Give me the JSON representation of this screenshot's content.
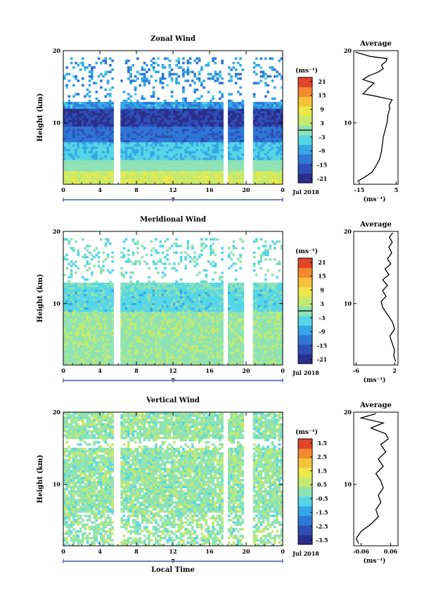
{
  "figure": {
    "xlabel": "Local Time",
    "ylabel": "Height (km)",
    "date_label": "Jul 2018",
    "day_label": "7",
    "avg_title": "Average",
    "unit_label": "(ms⁻¹)"
  },
  "chart_data": [
    {
      "type": "heatmap",
      "title": "Zonal Wind",
      "x_ticks": [
        "0",
        "4",
        "8",
        "12",
        "16",
        "20",
        "0"
      ],
      "xlim": [
        0,
        24
      ],
      "y_ticks": [
        "20",
        "10"
      ],
      "ylim": [
        1.5,
        20
      ],
      "colorbar": {
        "ticks": [
          "21",
          "15",
          "9",
          "3",
          "-3",
          "-9",
          "-15",
          "-21"
        ],
        "range": [
          -24,
          24
        ],
        "zero_line": 0
      },
      "gaps_hours": [
        [
          2.9,
          3.1
        ],
        [
          5.6,
          6.3
        ],
        [
          17.6,
          18.0
        ],
        [
          19.8,
          20.7
        ]
      ],
      "profile": {
        "points": [
          [
            -16,
            1.9
          ],
          [
            -12,
            2.5
          ],
          [
            -8,
            3.2
          ],
          [
            -6,
            4
          ],
          [
            -4,
            5
          ],
          [
            -3,
            6
          ],
          [
            -2.5,
            7
          ],
          [
            -2,
            8
          ],
          [
            -1,
            9
          ],
          [
            0,
            10
          ],
          [
            0.5,
            11
          ],
          [
            1.5,
            12
          ],
          [
            1.2,
            12.5
          ],
          [
            2.8,
            13.2
          ],
          [
            -8,
            13.8
          ],
          [
            -13,
            14
          ],
          [
            -10,
            14.8
          ],
          [
            -7,
            15.5
          ],
          [
            -13,
            16
          ],
          [
            -10,
            16.5
          ],
          [
            -5,
            17
          ],
          [
            -2,
            17.5
          ],
          [
            -3,
            18
          ],
          [
            -0.5,
            18.5
          ],
          [
            0,
            18.9
          ],
          [
            -9,
            19.2
          ],
          [
            -13,
            19.5
          ],
          [
            -17,
            19.8
          ]
        ],
        "x_ticks": [
          "-15",
          "5"
        ],
        "xlim": [
          -18,
          6
        ],
        "y_ticks": [
          "20",
          "10"
        ]
      }
    },
    {
      "type": "heatmap",
      "title": "Meridional Wind",
      "x_ticks": [
        "0",
        "4",
        "8",
        "12",
        "16",
        "20",
        "0"
      ],
      "xlim": [
        0,
        24
      ],
      "y_ticks": [
        "20",
        "10"
      ],
      "ylim": [
        1.5,
        20
      ],
      "colorbar": {
        "ticks": [
          "21",
          "15",
          "9",
          "3",
          "-3",
          "-9",
          "-15",
          "-21"
        ],
        "range": [
          -24,
          24
        ],
        "zero_line": 0
      },
      "gaps_hours": [
        [
          2.9,
          3.1
        ],
        [
          5.6,
          6.3
        ],
        [
          17.6,
          18.0
        ],
        [
          19.8,
          20.7
        ]
      ],
      "profile": {
        "points": [
          [
            2.2,
            2
          ],
          [
            1.8,
            2.8
          ],
          [
            2,
            3.5
          ],
          [
            1.5,
            4.5
          ],
          [
            1,
            5.5
          ],
          [
            2,
            6.5
          ],
          [
            1.5,
            7.5
          ],
          [
            0.5,
            8.5
          ],
          [
            -0.5,
            9.5
          ],
          [
            -0.8,
            10.3
          ],
          [
            0.2,
            11
          ],
          [
            -0.5,
            11.8
          ],
          [
            0.5,
            12.5
          ],
          [
            -0.5,
            13.3
          ],
          [
            0.8,
            14
          ],
          [
            0,
            14.8
          ],
          [
            1.2,
            15.5
          ],
          [
            0.5,
            16.2
          ],
          [
            1.4,
            17
          ],
          [
            0.8,
            17.8
          ],
          [
            1.5,
            18.5
          ],
          [
            0.9,
            19.2
          ],
          [
            1.6,
            19.8
          ]
        ],
        "x_ticks": [
          "-6",
          "2"
        ],
        "xlim": [
          -6.5,
          2.7
        ],
        "y_ticks": [
          "20",
          "10"
        ]
      }
    },
    {
      "type": "heatmap",
      "title": "Vertical Wind",
      "x_ticks": [
        "0",
        "4",
        "8",
        "12",
        "16",
        "20",
        "0"
      ],
      "xlim": [
        0,
        24
      ],
      "y_ticks": [
        "20",
        "10"
      ],
      "ylim": [
        1.5,
        20
      ],
      "colorbar": {
        "ticks": [
          "3.5",
          "2.5",
          "1.5",
          "0.5",
          "-0.5",
          "-1.5",
          "-2.5",
          "-3.5"
        ],
        "range": [
          -4,
          4
        ],
        "zero_line": null
      },
      "gaps_hours": [
        [
          2.9,
          3.1
        ],
        [
          5.6,
          6.3
        ],
        [
          17.6,
          18.0
        ],
        [
          19.8,
          20.7
        ]
      ],
      "profile": {
        "points": [
          [
            -0.07,
            1.8
          ],
          [
            -0.08,
            2.5
          ],
          [
            -0.06,
            3.5
          ],
          [
            -0.02,
            4.5
          ],
          [
            0.01,
            5.5
          ],
          [
            0,
            6.5
          ],
          [
            0.02,
            7.5
          ],
          [
            0.01,
            8.5
          ],
          [
            0.03,
            9.5
          ],
          [
            0.02,
            10.5
          ],
          [
            0,
            11.5
          ],
          [
            0.03,
            12.5
          ],
          [
            0.01,
            13.5
          ],
          [
            0.04,
            14.5
          ],
          [
            0.02,
            15.5
          ],
          [
            0.05,
            16.3
          ],
          [
            0.04,
            17
          ],
          [
            -0.02,
            17.8
          ],
          [
            0.03,
            18.5
          ],
          [
            -0.06,
            19.2
          ],
          [
            0,
            19.8
          ]
        ],
        "x_ticks": [
          "-0.06",
          "0.06"
        ],
        "xlim": [
          -0.09,
          0.09
        ],
        "y_ticks": [
          "20",
          "10"
        ]
      }
    }
  ]
}
